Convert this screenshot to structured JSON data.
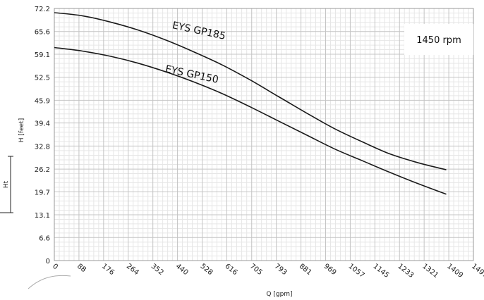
{
  "chart_data": {
    "type": "line",
    "title": "",
    "xlabel": "Q [gpm]",
    "ylabel": "H [feet]",
    "side_label": "Ht",
    "annotation": "1450 rpm",
    "xlim": [
      0,
      1497
    ],
    "ylim": [
      0,
      72.2
    ],
    "x_ticks": [
      0,
      88,
      176,
      264,
      352,
      440,
      528,
      616,
      705,
      793,
      881,
      969,
      1057,
      1145,
      1233,
      1321,
      1409,
      1497
    ],
    "x_tick_labels": [
      "0",
      "88",
      "176",
      "264",
      "352",
      "440",
      "528",
      "616",
      "705",
      "793",
      "881",
      "969",
      "1057",
      "1145",
      "1233",
      "1321",
      "1409",
      "1497"
    ],
    "y_ticks": [
      0,
      6.6,
      13.1,
      19.7,
      26.2,
      32.8,
      39.4,
      45.9,
      52.5,
      59.1,
      65.6,
      72.2
    ],
    "y_tick_labels": [
      "0",
      "6.6",
      "13.1",
      "19.7",
      "26.2",
      "32.8",
      "39.4",
      "45.9",
      "52.5",
      "59.1",
      "65.6",
      "72.2"
    ],
    "grid": true,
    "series": [
      {
        "name": "EYS GP185",
        "x": [
          0,
          100,
          200,
          300,
          400,
          500,
          600,
          700,
          800,
          900,
          1000,
          1100,
          1200,
          1300,
          1400
        ],
        "y": [
          71.0,
          70.1,
          68.3,
          66.0,
          63.1,
          59.7,
          56.0,
          51.7,
          47.0,
          42.3,
          37.8,
          34.0,
          30.5,
          28.0,
          26.0
        ]
      },
      {
        "name": "EYS GP150",
        "x": [
          0,
          100,
          200,
          300,
          400,
          500,
          600,
          700,
          800,
          900,
          1000,
          1100,
          1200,
          1300,
          1400
        ],
        "y": [
          61.0,
          60.0,
          58.5,
          56.5,
          54.0,
          51.1,
          47.8,
          44.0,
          40.0,
          36.0,
          32.0,
          28.6,
          25.2,
          22.0,
          19.0
        ]
      }
    ]
  }
}
